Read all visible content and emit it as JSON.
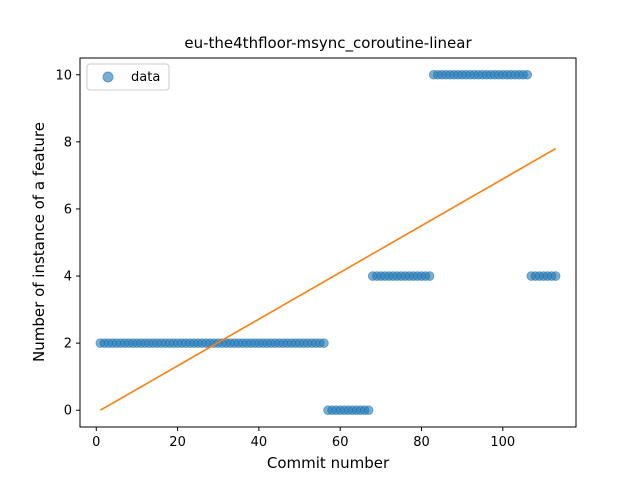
{
  "chart_data": {
    "type": "scatter",
    "title": "eu-the4thfloor-msync_coroutine-linear",
    "xlabel": "Commit number",
    "ylabel": "Number of instance of a feature",
    "xlim": [
      -4,
      118
    ],
    "ylim": [
      -0.5,
      10.5
    ],
    "xticks": [
      0,
      20,
      40,
      60,
      80,
      100
    ],
    "yticks": [
      0,
      2,
      4,
      6,
      8,
      10
    ],
    "grid": false,
    "legend_position": "top-left",
    "series": [
      {
        "name": "data",
        "kind": "scatter",
        "color": "#1f77b4",
        "segments": [
          {
            "x_start": 1,
            "x_end": 56,
            "y": 2
          },
          {
            "x_start": 57,
            "x_end": 67,
            "y": 0
          },
          {
            "x_start": 68,
            "x_end": 82,
            "y": 4
          },
          {
            "x_start": 83,
            "x_end": 106,
            "y": 10
          },
          {
            "x_start": 107,
            "x_end": 113,
            "y": 4
          }
        ]
      },
      {
        "kind": "line",
        "color": "#ff7f0e",
        "x": [
          1,
          113
        ],
        "y": [
          0.0,
          7.8
        ]
      }
    ]
  }
}
